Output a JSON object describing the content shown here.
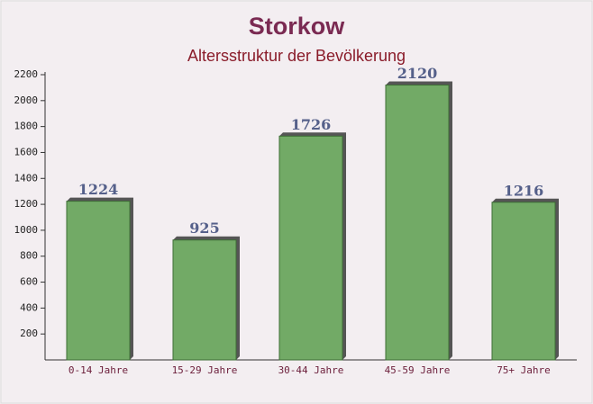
{
  "chart_data": {
    "type": "bar",
    "title": "Storkow",
    "subtitle": "Altersstruktur der Bevölkerung",
    "categories": [
      "0-14 Jahre",
      "15-29 Jahre",
      "30-44 Jahre",
      "45-59 Jahre",
      "75+ Jahre"
    ],
    "values": [
      1224,
      925,
      1726,
      2120,
      1216
    ],
    "color": "#6aa55e",
    "ylim": [
      0,
      2200
    ],
    "yticks": [
      200,
      400,
      600,
      800,
      1000,
      1200,
      1400,
      1600,
      1800,
      2000,
      2200
    ],
    "grid": false
  }
}
